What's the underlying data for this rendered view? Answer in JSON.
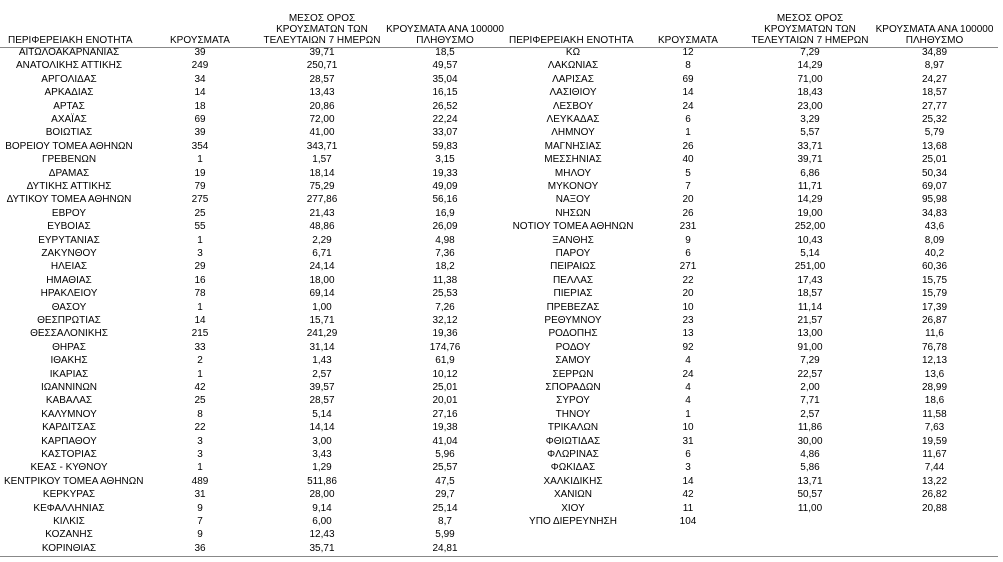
{
  "tables": [
    {
      "header": [
        "ΠΕΡΙΦΕΡΕΙΑΚΗ ΕΝΟΤΗΤΑ",
        "ΚΡΟΥΣΜΑΤΑ",
        "ΜΕΣΟΣ ΟΡΟΣ ΚΡΟΥΣΜΑΤΩΝ ΤΩΝ ΤΕΛΕΥΤΑΙΩΝ 7 ΗΜΕΡΩΝ",
        "ΚΡΟΥΣΜΑΤΑ ΑΝΑ 100000 ΠΛΗΘΥΣΜΟ"
      ],
      "rows": [
        [
          "ΑΙΤΩΛΟΑΚΑΡΝΑΝΙΑΣ",
          "39",
          "39,71",
          "18,5"
        ],
        [
          "ΑΝΑΤΟΛΙΚΗΣ ΑΤΤΙΚΗΣ",
          "249",
          "250,71",
          "49,57"
        ],
        [
          "ΑΡΓΟΛΙΔΑΣ",
          "34",
          "28,57",
          "35,04"
        ],
        [
          "ΑΡΚΑΔΙΑΣ",
          "14",
          "13,43",
          "16,15"
        ],
        [
          "ΑΡΤΑΣ",
          "18",
          "20,86",
          "26,52"
        ],
        [
          "ΑΧΑΪΑΣ",
          "69",
          "72,00",
          "22,24"
        ],
        [
          "ΒΟΙΩΤΙΑΣ",
          "39",
          "41,00",
          "33,07"
        ],
        [
          "ΒΟΡΕΙΟΥ ΤΟΜΕΑ ΑΘΗΝΩΝ",
          "354",
          "343,71",
          "59,83"
        ],
        [
          "ΓΡΕΒΕΝΩΝ",
          "1",
          "1,57",
          "3,15"
        ],
        [
          "ΔΡΑΜΑΣ",
          "19",
          "18,14",
          "19,33"
        ],
        [
          "ΔΥΤΙΚΗΣ ΑΤΤΙΚΗΣ",
          "79",
          "75,29",
          "49,09"
        ],
        [
          "ΔΥΤΙΚΟΥ ΤΟΜΕΑ ΑΘΗΝΩΝ",
          "275",
          "277,86",
          "56,16"
        ],
        [
          "ΕΒΡΟΥ",
          "25",
          "21,43",
          "16,9"
        ],
        [
          "ΕΥΒΟΙΑΣ",
          "55",
          "48,86",
          "26,09"
        ],
        [
          "ΕΥΡΥΤΑΝΙΑΣ",
          "1",
          "2,29",
          "4,98"
        ],
        [
          "ΖΑΚΥΝΘΟΥ",
          "3",
          "6,71",
          "7,36"
        ],
        [
          "ΗΛΕΙΑΣ",
          "29",
          "24,14",
          "18,2"
        ],
        [
          "ΗΜΑΘΙΑΣ",
          "16",
          "18,00",
          "11,38"
        ],
        [
          "ΗΡΑΚΛΕΙΟΥ",
          "78",
          "69,14",
          "25,53"
        ],
        [
          "ΘΑΣΟΥ",
          "1",
          "1,00",
          "7,26"
        ],
        [
          "ΘΕΣΠΡΩΤΙΑΣ",
          "14",
          "15,71",
          "32,12"
        ],
        [
          "ΘΕΣΣΑΛΟΝΙΚΗΣ",
          "215",
          "241,29",
          "19,36"
        ],
        [
          "ΘΗΡΑΣ",
          "33",
          "31,14",
          "174,76"
        ],
        [
          "ΙΘΑΚΗΣ",
          "2",
          "1,43",
          "61,9"
        ],
        [
          "ΙΚΑΡΙΑΣ",
          "1",
          "2,57",
          "10,12"
        ],
        [
          "ΙΩΑΝΝΙΝΩΝ",
          "42",
          "39,57",
          "25,01"
        ],
        [
          "ΚΑΒΑΛΑΣ",
          "25",
          "28,57",
          "20,01"
        ],
        [
          "ΚΑΛΥΜΝΟΥ",
          "8",
          "5,14",
          "27,16"
        ],
        [
          "ΚΑΡΔΙΤΣΑΣ",
          "22",
          "14,14",
          "19,38"
        ],
        [
          "ΚΑΡΠΑΘΟΥ",
          "3",
          "3,00",
          "41,04"
        ],
        [
          "ΚΑΣΤΟΡΙΑΣ",
          "3",
          "3,43",
          "5,96"
        ],
        [
          "ΚΕΑΣ - ΚΥΘΝΟΥ",
          "1",
          "1,29",
          "25,57"
        ],
        [
          "ΚΕΝΤΡΙΚΟΥ ΤΟΜΕΑ ΑΘΗΝΩΝ",
          "489",
          "511,86",
          "47,5"
        ],
        [
          "ΚΕΡΚΥΡΑΣ",
          "31",
          "28,00",
          "29,7"
        ],
        [
          "ΚΕΦΑΛΛΗΝΙΑΣ",
          "9",
          "9,14",
          "25,14"
        ],
        [
          "ΚΙΛΚΙΣ",
          "7",
          "6,00",
          "8,7"
        ],
        [
          "ΚΟΖΑΝΗΣ",
          "9",
          "12,43",
          "5,99"
        ],
        [
          "ΚΟΡΙΝΘΙΑΣ",
          "36",
          "35,71",
          "24,81"
        ]
      ]
    },
    {
      "header": [
        "ΠΕΡΙΦΕΡΕΙΑΚΗ ΕΝΟΤΗΤΑ",
        "ΚΡΟΥΣΜΑΤΑ",
        "ΜΕΣΟΣ ΟΡΟΣ ΚΡΟΥΣΜΑΤΩΝ ΤΩΝ ΤΕΛΕΥΤΑΙΩΝ 7 ΗΜΕΡΩΝ",
        "ΚΡΟΥΣΜΑΤΑ ΑΝΑ 100000 ΠΛΗΘΥΣΜΟ"
      ],
      "rows": [
        [
          "ΚΩ",
          "12",
          "7,29",
          "34,89"
        ],
        [
          "ΛΑΚΩΝΙΑΣ",
          "8",
          "14,29",
          "8,97"
        ],
        [
          "ΛΑΡΙΣΑΣ",
          "69",
          "71,00",
          "24,27"
        ],
        [
          "ΛΑΣΙΘΙΟΥ",
          "14",
          "18,43",
          "18,57"
        ],
        [
          "ΛΕΣΒΟΥ",
          "24",
          "23,00",
          "27,77"
        ],
        [
          "ΛΕΥΚΑΔΑΣ",
          "6",
          "3,29",
          "25,32"
        ],
        [
          "ΛΗΜΝΟΥ",
          "1",
          "5,57",
          "5,79"
        ],
        [
          "ΜΑΓΝΗΣΙΑΣ",
          "26",
          "33,71",
          "13,68"
        ],
        [
          "ΜΕΣΣΗΝΙΑΣ",
          "40",
          "39,71",
          "25,01"
        ],
        [
          "ΜΗΛΟΥ",
          "5",
          "6,86",
          "50,34"
        ],
        [
          "ΜΥΚΟΝΟΥ",
          "7",
          "11,71",
          "69,07"
        ],
        [
          "ΝΑΞΟΥ",
          "20",
          "14,29",
          "95,98"
        ],
        [
          "ΝΗΣΩΝ",
          "26",
          "19,00",
          "34,83"
        ],
        [
          "ΝΟΤΙΟΥ ΤΟΜΕΑ ΑΘΗΝΩΝ",
          "231",
          "252,00",
          "43,6"
        ],
        [
          "ΞΑΝΘΗΣ",
          "9",
          "10,43",
          "8,09"
        ],
        [
          "ΠΑΡΟΥ",
          "6",
          "5,14",
          "40,2"
        ],
        [
          "ΠΕΙΡΑΙΩΣ",
          "271",
          "251,00",
          "60,36"
        ],
        [
          "ΠΕΛΛΑΣ",
          "22",
          "17,43",
          "15,75"
        ],
        [
          "ΠΙΕΡΙΑΣ",
          "20",
          "18,57",
          "15,79"
        ],
        [
          "ΠΡΕΒΕΖΑΣ",
          "10",
          "11,14",
          "17,39"
        ],
        [
          "ΡΕΘΥΜΝΟΥ",
          "23",
          "21,57",
          "26,87"
        ],
        [
          "ΡΟΔΟΠΗΣ",
          "13",
          "13,00",
          "11,6"
        ],
        [
          "ΡΟΔΟΥ",
          "92",
          "91,00",
          "76,78"
        ],
        [
          "ΣΑΜΟΥ",
          "4",
          "7,29",
          "12,13"
        ],
        [
          "ΣΕΡΡΩΝ",
          "24",
          "22,57",
          "13,6"
        ],
        [
          "ΣΠΟΡΑΔΩΝ",
          "4",
          "2,00",
          "28,99"
        ],
        [
          "ΣΥΡΟΥ",
          "4",
          "7,71",
          "18,6"
        ],
        [
          "ΤΗΝΟΥ",
          "1",
          "2,57",
          "11,58"
        ],
        [
          "ΤΡΙΚΑΛΩΝ",
          "10",
          "11,86",
          "7,63"
        ],
        [
          "ΦΘΙΩΤΙΔΑΣ",
          "31",
          "30,00",
          "19,59"
        ],
        [
          "ΦΛΩΡΙΝΑΣ",
          "6",
          "4,86",
          "11,67"
        ],
        [
          "ΦΩΚΙΔΑΣ",
          "3",
          "5,86",
          "7,44"
        ],
        [
          "ΧΑΛΚΙΔΙΚΗΣ",
          "14",
          "13,71",
          "13,22"
        ],
        [
          "ΧΑΝΙΩΝ",
          "42",
          "50,57",
          "26,82"
        ],
        [
          "ΧΙΟΥ",
          "11",
          "11,00",
          "20,88"
        ],
        [
          "ΥΠΟ ΔΙΕΡΕΥΝΗΣΗ",
          "104"
        ]
      ]
    }
  ]
}
